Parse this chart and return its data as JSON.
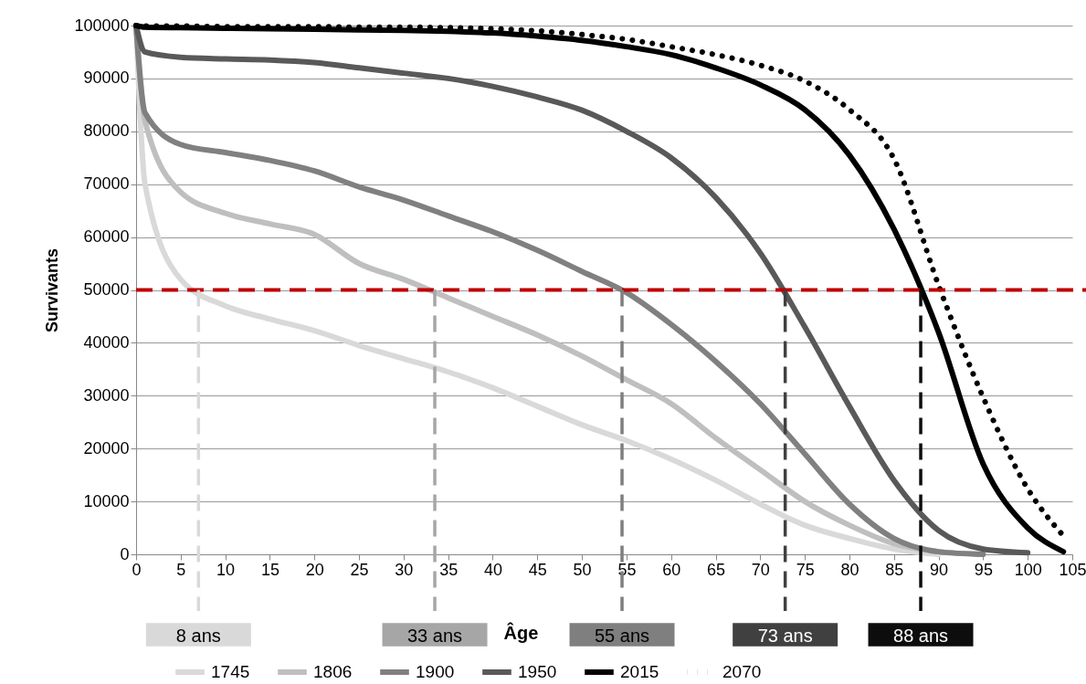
{
  "chart_data": {
    "type": "line",
    "xlabel": "Âge",
    "ylabel": "Survivants",
    "x": [
      0,
      1,
      5,
      10,
      15,
      20,
      25,
      30,
      35,
      40,
      45,
      50,
      55,
      60,
      65,
      70,
      75,
      80,
      85,
      90,
      95,
      100,
      104
    ],
    "series": [
      {
        "name": "1745",
        "color": "#d9d9d9",
        "values": [
          100000,
          70000,
          52000,
          47000,
          44500,
          42300,
          39500,
          37000,
          34500,
          31500,
          28000,
          24500,
          21500,
          18000,
          14000,
          9500,
          5500,
          3000,
          1000,
          0,
          null,
          null,
          null
        ]
      },
      {
        "name": "1806",
        "color": "#bfbfbf",
        "values": [
          100000,
          82000,
          68500,
          64500,
          62500,
          60500,
          55000,
          52000,
          48500,
          45000,
          41500,
          37500,
          33000,
          28500,
          22000,
          16000,
          10000,
          5500,
          2000,
          500,
          0,
          null,
          null
        ]
      },
      {
        "name": "1900",
        "color": "#808080",
        "values": [
          100000,
          83500,
          77500,
          76000,
          74500,
          72500,
          69500,
          67000,
          64000,
          61000,
          57500,
          53500,
          49500,
          43500,
          36500,
          28500,
          19000,
          9500,
          3000,
          500,
          0,
          null,
          null
        ]
      },
      {
        "name": "1950",
        "color": "#595959",
        "values": [
          100000,
          95000,
          94000,
          93700,
          93500,
          93000,
          92000,
          91000,
          90000,
          88500,
          86500,
          84000,
          80000,
          75000,
          67500,
          57000,
          43000,
          28000,
          14000,
          4500,
          1000,
          300,
          null
        ]
      },
      {
        "name": "2015",
        "color": "#000000",
        "values": [
          100000,
          99700,
          99600,
          99500,
          99400,
          99300,
          99200,
          99100,
          98900,
          98600,
          98000,
          97200,
          96000,
          94500,
          92000,
          88800,
          84100,
          75500,
          61500,
          42000,
          17100,
          5000,
          500
        ]
      },
      {
        "name": "2070",
        "color": "#000000",
        "line_style": "dotted",
        "values": [
          100000,
          99900,
          99900,
          99800,
          99800,
          99800,
          99700,
          99700,
          99600,
          99400,
          99000,
          98300,
          97400,
          96000,
          94500,
          92500,
          89500,
          84100,
          74800,
          50900,
          29700,
          12400,
          3500
        ]
      }
    ],
    "xlim": [
      0,
      105
    ],
    "xticks": [
      0,
      5,
      10,
      15,
      20,
      25,
      30,
      35,
      40,
      45,
      50,
      55,
      60,
      65,
      70,
      75,
      80,
      85,
      90,
      95,
      100,
      105
    ],
    "ylim": [
      0,
      100000
    ],
    "yticks": [
      0,
      10000,
      20000,
      30000,
      40000,
      50000,
      60000,
      70000,
      80000,
      90000,
      100000
    ],
    "grid": "y",
    "legend": "bottom",
    "line_style": "solid",
    "marker": "none",
    "ref_lines": [
      {
        "axis": "y",
        "value": 50000,
        "color": "#c00000",
        "line_style": "dashed"
      },
      {
        "axis": "x",
        "value": 7,
        "label": "8 ans",
        "color": "#d9d9d9",
        "line_style": "dashed"
      },
      {
        "axis": "x",
        "value": 33.5,
        "label": "33 ans",
        "color": "#a6a6a6",
        "line_style": "dashed"
      },
      {
        "axis": "x",
        "value": 54.5,
        "label": "55 ans",
        "color": "#7f7f7f",
        "line_style": "dashed"
      },
      {
        "axis": "x",
        "value": 72.8,
        "label": "73 ans",
        "color": "#404040",
        "line_style": "dashed"
      },
      {
        "axis": "x",
        "value": 88,
        "label": "88 ans",
        "color": "#0d0d0d",
        "line_style": "dashed"
      }
    ]
  }
}
